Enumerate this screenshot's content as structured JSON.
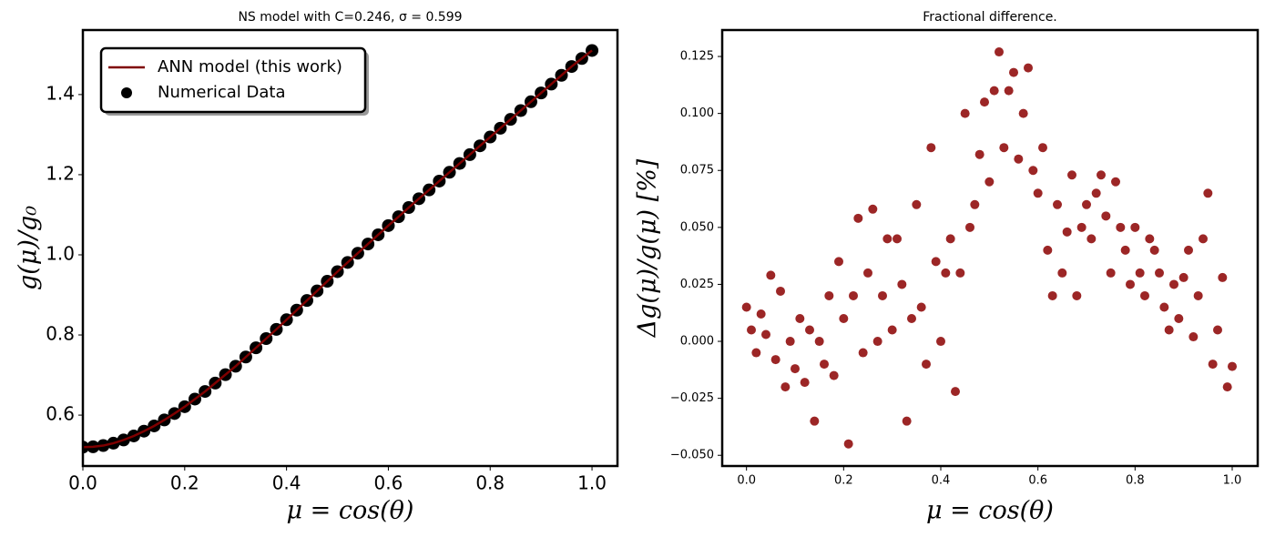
{
  "chart_data": [
    {
      "type": "line",
      "title": "NS model with C=0.246, σ = 0.599",
      "xlabel": "μ = cos(θ)",
      "ylabel": "g(μ)/g₀",
      "xlim": [
        0,
        1.05
      ],
      "ylim": [
        0.473,
        1.561
      ],
      "xticks": [
        {
          "value": 0,
          "label": "0.0"
        },
        0.2,
        0.4,
        0.6,
        0.8,
        {
          "value": 1,
          "label": "1.0"
        }
      ],
      "yticks": [
        0.6,
        0.8,
        {
          "value": 1,
          "label": "1.0"
        },
        1.2,
        1.4
      ],
      "legend": "upper left",
      "x": [
        0,
        0.02,
        0.04,
        0.06,
        0.08,
        0.1,
        0.12,
        0.14,
        0.16,
        0.18,
        0.2,
        0.22,
        0.24,
        0.26,
        0.28,
        0.3,
        0.32,
        0.34,
        0.36,
        0.38,
        0.4,
        0.42,
        0.44,
        0.46,
        0.48,
        0.5,
        0.52,
        0.54,
        0.56,
        0.58,
        0.6,
        0.62,
        0.64,
        0.66,
        0.68,
        0.7,
        0.72,
        0.74,
        0.76,
        0.78,
        0.8,
        0.82,
        0.84,
        0.86,
        0.88,
        0.9,
        0.92,
        0.94,
        0.96,
        0.98,
        1
      ],
      "series": [
        {
          "name": "ANN model (this work)",
          "type": "line",
          "color": "#7f0000",
          "values": [
            0.52,
            0.521,
            0.524,
            0.53,
            0.538,
            0.548,
            0.56,
            0.573,
            0.588,
            0.604,
            0.621,
            0.64,
            0.659,
            0.68,
            0.701,
            0.722,
            0.745,
            0.768,
            0.791,
            0.814,
            0.838,
            0.862,
            0.886,
            0.91,
            0.934,
            0.958,
            0.981,
            1.004,
            1.027,
            1.05,
            1.073,
            1.095,
            1.118,
            1.14,
            1.162,
            1.184,
            1.206,
            1.228,
            1.25,
            1.272,
            1.294,
            1.316,
            1.338,
            1.36,
            1.382,
            1.404,
            1.426,
            1.448,
            1.47,
            1.49,
            1.51
          ]
        },
        {
          "name": "Numerical Data",
          "type": "scatter",
          "color": "#000000",
          "values": [
            0.52,
            0.521,
            0.524,
            0.53,
            0.538,
            0.548,
            0.56,
            0.573,
            0.588,
            0.604,
            0.621,
            0.64,
            0.659,
            0.68,
            0.701,
            0.722,
            0.745,
            0.768,
            0.791,
            0.814,
            0.838,
            0.862,
            0.886,
            0.91,
            0.934,
            0.958,
            0.981,
            1.004,
            1.027,
            1.05,
            1.073,
            1.095,
            1.118,
            1.14,
            1.162,
            1.184,
            1.206,
            1.228,
            1.25,
            1.272,
            1.294,
            1.316,
            1.338,
            1.36,
            1.382,
            1.404,
            1.426,
            1.448,
            1.47,
            1.49,
            1.51
          ]
        }
      ]
    },
    {
      "type": "scatter",
      "title": "Fractional difference.",
      "xlabel": "μ = cos(θ)",
      "ylabel": "Δg(μ)/g(μ)  [%]",
      "xlim": [
        -0.05,
        1.0525
      ],
      "ylim": [
        -0.0547,
        0.1366
      ],
      "xticks": [
        {
          "value": 0,
          "label": "0.0"
        },
        0.2,
        0.4,
        0.6,
        0.8,
        {
          "value": 1,
          "label": "1.0"
        }
      ],
      "yticks": [
        {
          "value": -0.05,
          "label": "−0.050"
        },
        {
          "value": -0.025,
          "label": "−0.025"
        },
        {
          "value": 0,
          "label": "0.000"
        },
        0.025,
        {
          "value": 0.05,
          "label": "0.050"
        },
        0.075,
        {
          "value": 0.1,
          "label": "0.100"
        },
        0.125
      ],
      "x": [
        0,
        0.01,
        0.02,
        0.03,
        0.04,
        0.05,
        0.06,
        0.07,
        0.08,
        0.09,
        0.1,
        0.11,
        0.12,
        0.13,
        0.14,
        0.15,
        0.16,
        0.17,
        0.18,
        0.19,
        0.2,
        0.21,
        0.22,
        0.23,
        0.24,
        0.25,
        0.26,
        0.27,
        0.28,
        0.29,
        0.3,
        0.31,
        0.32,
        0.33,
        0.34,
        0.35,
        0.36,
        0.37,
        0.38,
        0.39,
        0.4,
        0.41,
        0.42,
        0.43,
        0.44,
        0.45,
        0.46,
        0.47,
        0.48,
        0.49,
        0.5,
        0.51,
        0.52,
        0.53,
        0.54,
        0.55,
        0.56,
        0.57,
        0.58,
        0.59,
        0.6,
        0.61,
        0.62,
        0.63,
        0.64,
        0.65,
        0.66,
        0.67,
        0.68,
        0.69,
        0.7,
        0.71,
        0.72,
        0.73,
        0.74,
        0.75,
        0.76,
        0.77,
        0.78,
        0.79,
        0.8,
        0.81,
        0.82,
        0.83,
        0.84,
        0.85,
        0.86,
        0.87,
        0.88,
        0.89,
        0.9,
        0.91,
        0.92,
        0.93,
        0.94,
        0.95,
        0.96,
        0.97,
        0.98,
        0.99,
        1
      ],
      "series": [
        {
          "type": "scatter",
          "color": "#8b0000",
          "values": [
            0.015,
            0.005,
            -0.005,
            0.012,
            0.003,
            0.029,
            -0.008,
            0.022,
            -0.02,
            0,
            -0.012,
            0.01,
            -0.018,
            0.005,
            -0.035,
            0,
            -0.01,
            0.02,
            -0.015,
            0.035,
            0.01,
            -0.045,
            0.02,
            0.054,
            -0.005,
            0.03,
            0.058,
            0,
            0.02,
            0.045,
            0.005,
            0.045,
            0.025,
            -0.035,
            0.01,
            0.06,
            0.015,
            -0.01,
            0.085,
            0.035,
            0,
            0.03,
            0.045,
            -0.022,
            0.03,
            0.1,
            0.05,
            0.06,
            0.082,
            0.105,
            0.07,
            0.11,
            0.127,
            0.085,
            0.11,
            0.118,
            0.08,
            0.1,
            0.12,
            0.075,
            0.065,
            0.085,
            0.04,
            0.02,
            0.06,
            0.03,
            0.048,
            0.073,
            0.02,
            0.05,
            0.06,
            0.045,
            0.065,
            0.073,
            0.055,
            0.03,
            0.07,
            0.05,
            0.04,
            0.025,
            0.05,
            0.03,
            0.02,
            0.045,
            0.04,
            0.03,
            0.015,
            0.005,
            0.025,
            0.01,
            0.028,
            0.04,
            0.002,
            0.02,
            0.045,
            0.065,
            -0.01,
            0.005,
            0.028,
            -0.02,
            -0.011
          ]
        }
      ]
    }
  ]
}
